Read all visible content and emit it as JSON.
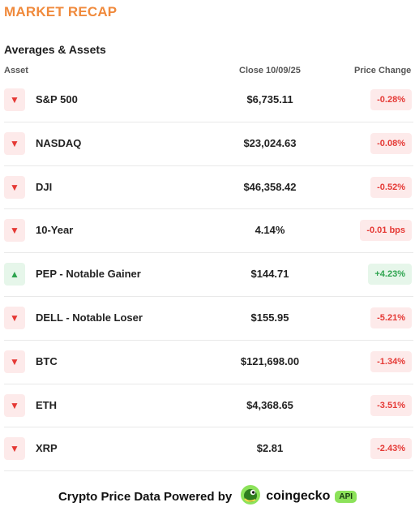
{
  "header": {
    "title": "MARKET RECAP",
    "section_title": "Averages & Assets"
  },
  "columns": {
    "asset": "Asset",
    "close": "Close 10/09/25",
    "change": "Price Change"
  },
  "rows": [
    {
      "name": "S&P 500",
      "close": "$6,735.11",
      "change": "-0.28%",
      "direction": "down"
    },
    {
      "name": "NASDAQ",
      "close": "$23,024.63",
      "change": "-0.08%",
      "direction": "down"
    },
    {
      "name": "DJI",
      "close": "$46,358.42",
      "change": "-0.52%",
      "direction": "down"
    },
    {
      "name": "10-Year",
      "close": "4.14%",
      "change": "-0.01 bps",
      "direction": "down"
    },
    {
      "name": "PEP - Notable Gainer",
      "close": "$144.71",
      "change": "+4.23%",
      "direction": "up"
    },
    {
      "name": "DELL - Notable Loser",
      "close": "$155.95",
      "change": "-5.21%",
      "direction": "down"
    },
    {
      "name": "BTC",
      "close": "$121,698.00",
      "change": "-1.34%",
      "direction": "down"
    },
    {
      "name": "ETH",
      "close": "$4,368.65",
      "change": "-3.51%",
      "direction": "down"
    },
    {
      "name": "XRP",
      "close": "$2.81",
      "change": "-2.43%",
      "direction": "down"
    }
  ],
  "icons": {
    "down": "triangle-down-icon",
    "up": "triangle-up-icon",
    "logo": "coingecko-logo-icon"
  },
  "colors": {
    "title": "#f08a3c",
    "negative": "#e53935",
    "negative_bg": "#fdeaea",
    "positive": "#2ea44f",
    "positive_bg": "#e6f6ea",
    "api_badge": "#8ce25a"
  },
  "footer": {
    "text": "Crypto Price Data Powered by",
    "brand": "coingecko",
    "badge": "API"
  }
}
